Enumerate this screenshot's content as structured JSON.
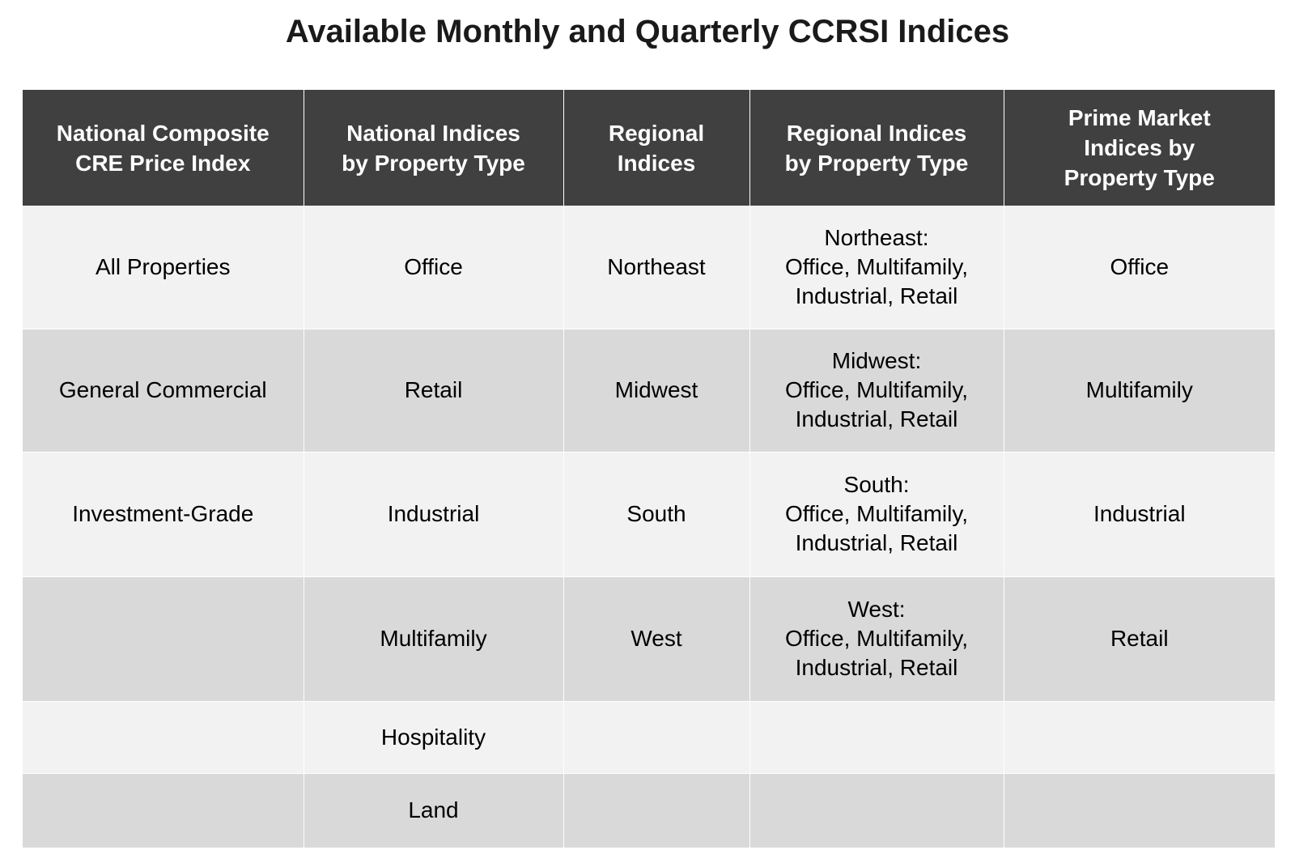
{
  "colors": {
    "header_bg": "#404040",
    "header_text": "#ffffff",
    "row_light": "#f2f2f2",
    "row_dark": "#d9d9d9"
  },
  "chart_data": {
    "type": "table",
    "title": "Available Monthly and Quarterly CCRSI Indices",
    "columns": [
      "National Composite\nCRE Price Index",
      "National Indices\nby Property Type",
      "Regional\nIndices",
      "Regional Indices\nby Property Type",
      "Prime Market\nIndices by\nProperty Type"
    ],
    "rows": [
      [
        "All Properties",
        "Office",
        "Northeast",
        "Northeast:\nOffice, Multifamily,\nIndustrial, Retail",
        "Office"
      ],
      [
        "General Commercial",
        "Retail",
        "Midwest",
        "Midwest:\nOffice, Multifamily,\nIndustrial, Retail",
        "Multifamily"
      ],
      [
        "Investment-Grade",
        "Industrial",
        "South",
        "South:\nOffice, Multifamily,\nIndustrial, Retail",
        "Industrial"
      ],
      [
        "",
        "Multifamily",
        "West",
        "West:\nOffice, Multifamily,\nIndustrial, Retail",
        "Retail"
      ],
      [
        "",
        "Hospitality",
        "",
        "",
        ""
      ],
      [
        "",
        "Land",
        "",
        "",
        ""
      ]
    ]
  }
}
